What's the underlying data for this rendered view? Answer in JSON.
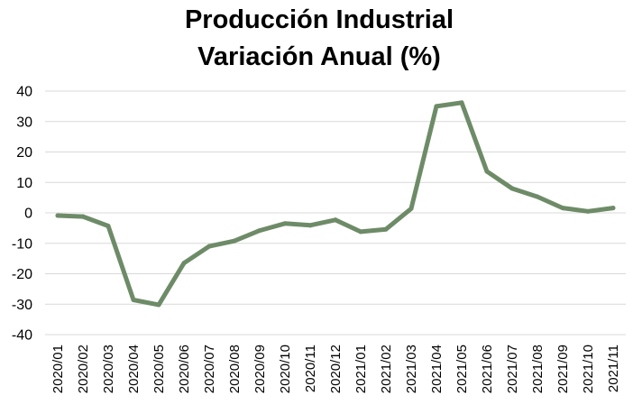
{
  "chart_data": {
    "type": "line",
    "title": [
      "Producción Industrial",
      "Variación Anual (%)"
    ],
    "xlabel": "",
    "ylabel": "",
    "ylim": [
      -40,
      40
    ],
    "yticks": [
      40,
      30,
      20,
      10,
      0,
      -10,
      -20,
      -30,
      -40
    ],
    "grid": true,
    "legend": "none",
    "categories": [
      "2020/01",
      "2020/02",
      "2020/03",
      "2020/04",
      "2020/05",
      "2020/06",
      "2020/07",
      "2020/08",
      "2020/09",
      "2020/10",
      "2020/11",
      "2020/12",
      "2021/01",
      "2021/02",
      "2021/03",
      "2021/04",
      "2021/05",
      "2021/06",
      "2021/07",
      "2021/08",
      "2021/09",
      "2021/10",
      "2021/11"
    ],
    "series": [
      {
        "values": [
          -0.9,
          -1.2,
          -4.3,
          -28.6,
          -30.2,
          -16.5,
          -11.0,
          -9.2,
          -5.8,
          -3.5,
          -4.1,
          -2.3,
          -6.2,
          -5.4,
          1.4,
          35.0,
          36.2,
          13.6,
          8.0,
          5.3,
          1.6,
          0.5,
          1.6
        ],
        "color": "#6e8b68"
      }
    ]
  }
}
